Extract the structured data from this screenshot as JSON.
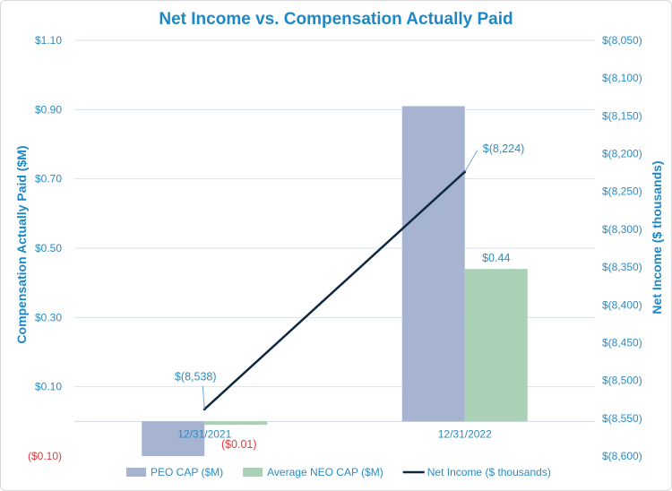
{
  "chart_data": {
    "type": "bar",
    "title": "Net Income vs. Compensation Actually Paid",
    "categories": [
      "12/31/2021",
      "12/31/2022"
    ],
    "series": [
      {
        "name": "PEO CAP ($M)",
        "kind": "bar",
        "axis": "left",
        "color": "#a6b4d2",
        "values": [
          -0.1,
          0.91
        ],
        "labels": [
          "",
          ""
        ]
      },
      {
        "name": "Average NEO CAP ($M)",
        "kind": "bar",
        "axis": "left",
        "color": "#aad0b6",
        "values": [
          -0.01,
          0.44
        ],
        "labels": [
          "($0.01)",
          "$0.44"
        ]
      },
      {
        "name": "Net Income ($ thousands)",
        "kind": "line",
        "axis": "right",
        "color": "#0e2840",
        "values": [
          -8538,
          -8224
        ],
        "labels": [
          "$(8,538)",
          "$(8,224)"
        ]
      }
    ],
    "ylabel": "Compensation Actually Paid ($M)",
    "ylabel_right": "Net Income ($ thousands)",
    "ylim": [
      -0.1,
      1.1
    ],
    "ylim_right": [
      -8600,
      -8050
    ],
    "yticks": [
      -0.1,
      0.1,
      0.3,
      0.5,
      0.7,
      0.9,
      1.1
    ],
    "ytick_labels": [
      "($0.10)",
      "$0.10",
      "$0.30",
      "$0.50",
      "$0.70",
      "$0.90",
      "$1.10"
    ],
    "yticks_right": [
      -8600,
      -8550,
      -8500,
      -8450,
      -8400,
      -8350,
      -8300,
      -8250,
      -8200,
      -8150,
      -8100,
      -8050
    ],
    "ytick_labels_right": [
      "$(8,600)",
      "$(8,550)",
      "$(8,500)",
      "$(8,450)",
      "$(8,400)",
      "$(8,350)",
      "$(8,300)",
      "$(8,250)",
      "$(8,200)",
      "$(8,150)",
      "$(8,100)",
      "$(8,050)"
    ],
    "grid": true,
    "legend": "bottom"
  },
  "colors": {
    "text": "#2a8cc4",
    "title": "#1e88c7",
    "negative": "#e23b3b",
    "grid": "#d6e2ee"
  }
}
